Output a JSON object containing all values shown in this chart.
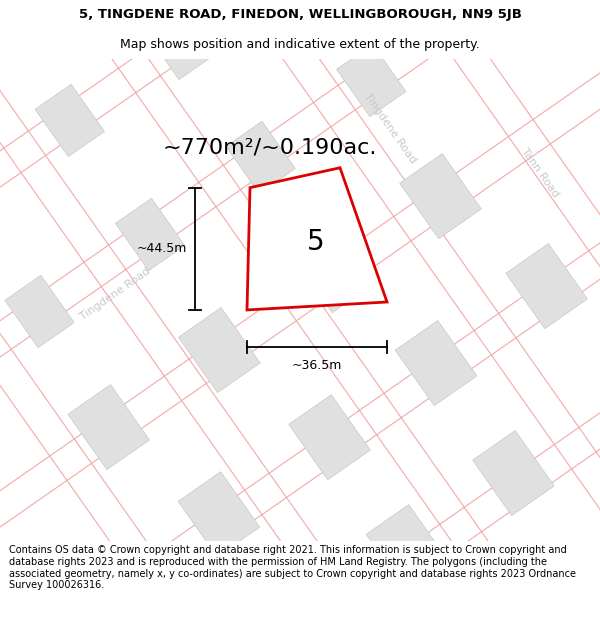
{
  "title_line1": "5, TINGDENE ROAD, FINEDON, WELLINGBOROUGH, NN9 5JB",
  "title_line2": "Map shows position and indicative extent of the property.",
  "area_text": "~770m²/~0.190ac.",
  "label_number": "5",
  "dim_height": "~44.5m",
  "dim_width": "~36.5m",
  "footer_text": "Contains OS data © Crown copyright and database right 2021. This information is subject to Crown copyright and database rights 2023 and is reproduced with the permission of HM Land Registry. The polygons (including the associated geometry, namely x, y co-ordinates) are subject to Crown copyright and database rights 2023 Ordnance Survey 100026316.",
  "road_label_tingdene": "Tingdene Road",
  "road_label_tann": "Tann Road",
  "road_label_tingdene2": "Tingdene Road",
  "bg_color": "#ffffff",
  "map_bg": "#ffffff",
  "parcel_fill": "#efefef",
  "parcel_edge": "#f0a0a0",
  "building_fill": "#e0e0e0",
  "building_edge": "#c8c8c8",
  "road_fill": "#ffffff",
  "plot_edge_color": "#dd0000",
  "plot_fill": "#ffffff",
  "dim_line_color": "#000000",
  "road_label_color": "#c8c8c8",
  "title_fontsize": 9.5,
  "subtitle_fontsize": 9,
  "area_fontsize": 16,
  "label_fontsize": 20,
  "road_label_fontsize": 8,
  "footer_fontsize": 7
}
